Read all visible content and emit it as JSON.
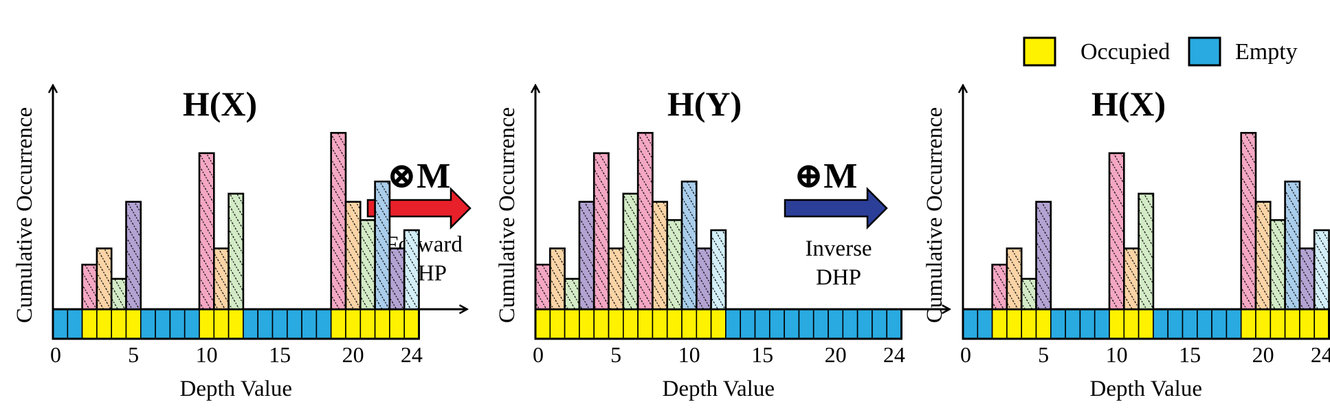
{
  "legend": {
    "occupied_label": "Occupied",
    "empty_label": "Empty",
    "occupied_color": "#FFF200",
    "empty_color": "#29AAE1"
  },
  "ylabel": "Cumulative Occurrence",
  "xlabel": "Depth Value",
  "tick_labels": [
    "0",
    "5",
    "10",
    "15",
    "20",
    "24"
  ],
  "operations": [
    {
      "symbol": "⊗M",
      "caption": [
        "Forward",
        "DHP"
      ],
      "color": "#E8202A"
    },
    {
      "symbol": "⊕M",
      "caption": [
        "Inverse",
        "DHP"
      ],
      "color": "#2B3F98"
    }
  ],
  "bar_colors": [
    "#F4A7C3",
    "#FAD4A6",
    "#D3EBC6",
    "#B3A3D3",
    "#A9CDEB",
    "#D3EEF7"
  ],
  "chart_data": [
    {
      "type": "bar",
      "title": "H(X)",
      "xlabel": "Depth Value",
      "ylabel": "Cumulative Occurrence",
      "xlim": [
        0,
        24
      ],
      "occupied_bins": [
        2,
        3,
        4,
        5,
        10,
        11,
        12,
        19,
        20,
        21,
        22,
        23,
        24
      ],
      "bars": [
        {
          "depth": 2,
          "value": 2.2,
          "color": 0
        },
        {
          "depth": 3,
          "value": 3.0,
          "color": 1
        },
        {
          "depth": 4,
          "value": 1.5,
          "color": 2
        },
        {
          "depth": 5,
          "value": 5.3,
          "color": 3
        },
        {
          "depth": 10,
          "value": 7.7,
          "color": 0
        },
        {
          "depth": 11,
          "value": 3.0,
          "color": 1
        },
        {
          "depth": 12,
          "value": 5.7,
          "color": 2
        },
        {
          "depth": 19,
          "value": 8.7,
          "color": 0
        },
        {
          "depth": 20,
          "value": 5.3,
          "color": 1
        },
        {
          "depth": 21,
          "value": 4.4,
          "color": 2
        },
        {
          "depth": 22,
          "value": 6.3,
          "color": 4
        },
        {
          "depth": 23,
          "value": 3.0,
          "color": 3
        },
        {
          "depth": 24,
          "value": 3.9,
          "color": 5
        }
      ]
    },
    {
      "type": "bar",
      "title": "H(Y)",
      "xlabel": "Depth Value",
      "ylabel": "Cumulative Occurrence",
      "xlim": [
        0,
        24
      ],
      "occupied_bins": [
        0,
        1,
        2,
        3,
        4,
        5,
        6,
        7,
        8,
        9,
        10,
        11,
        12
      ],
      "bars": [
        {
          "depth": 0,
          "value": 2.2,
          "color": 0
        },
        {
          "depth": 1,
          "value": 3.0,
          "color": 1
        },
        {
          "depth": 2,
          "value": 1.5,
          "color": 2
        },
        {
          "depth": 3,
          "value": 5.3,
          "color": 3
        },
        {
          "depth": 4,
          "value": 7.7,
          "color": 0
        },
        {
          "depth": 5,
          "value": 3.0,
          "color": 1
        },
        {
          "depth": 6,
          "value": 5.7,
          "color": 2
        },
        {
          "depth": 7,
          "value": 8.7,
          "color": 0
        },
        {
          "depth": 8,
          "value": 5.3,
          "color": 1
        },
        {
          "depth": 9,
          "value": 4.4,
          "color": 2
        },
        {
          "depth": 10,
          "value": 6.3,
          "color": 4
        },
        {
          "depth": 11,
          "value": 3.0,
          "color": 3
        },
        {
          "depth": 12,
          "value": 3.9,
          "color": 5
        }
      ]
    },
    {
      "type": "bar",
      "title": "H(X)",
      "xlabel": "Depth Value",
      "ylabel": "Cumulative Occurrence",
      "xlim": [
        0,
        24
      ],
      "occupied_bins": [
        2,
        3,
        4,
        5,
        10,
        11,
        12,
        19,
        20,
        21,
        22,
        23,
        24
      ],
      "bars": [
        {
          "depth": 2,
          "value": 2.2,
          "color": 0
        },
        {
          "depth": 3,
          "value": 3.0,
          "color": 1
        },
        {
          "depth": 4,
          "value": 1.5,
          "color": 2
        },
        {
          "depth": 5,
          "value": 5.3,
          "color": 3
        },
        {
          "depth": 10,
          "value": 7.7,
          "color": 0
        },
        {
          "depth": 11,
          "value": 3.0,
          "color": 1
        },
        {
          "depth": 12,
          "value": 5.7,
          "color": 2
        },
        {
          "depth": 19,
          "value": 8.7,
          "color": 0
        },
        {
          "depth": 20,
          "value": 5.3,
          "color": 1
        },
        {
          "depth": 21,
          "value": 4.4,
          "color": 2
        },
        {
          "depth": 22,
          "value": 6.3,
          "color": 4
        },
        {
          "depth": 23,
          "value": 3.0,
          "color": 3
        },
        {
          "depth": 24,
          "value": 3.9,
          "color": 5
        }
      ]
    }
  ]
}
